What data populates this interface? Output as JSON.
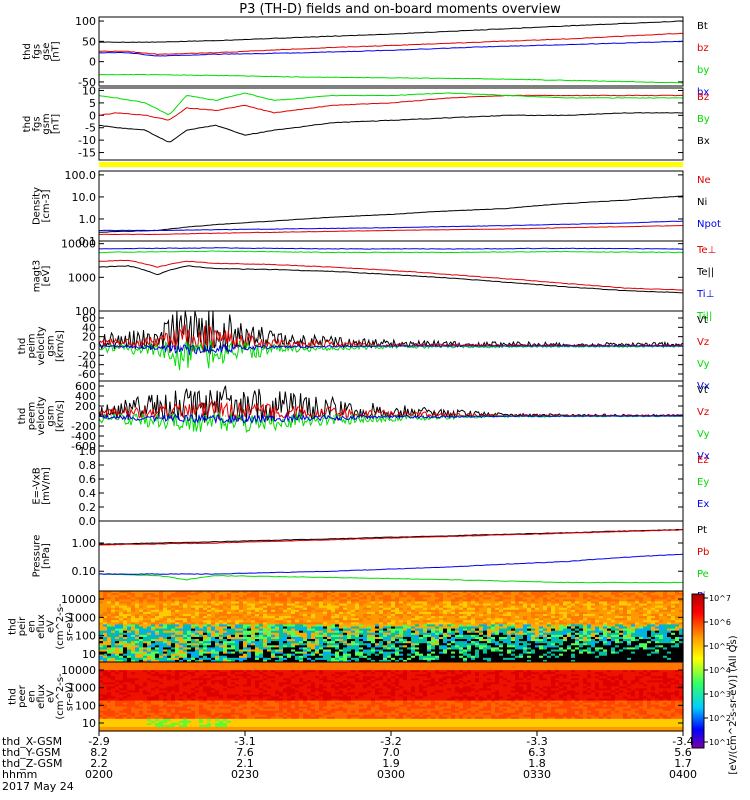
{
  "title": "P3 (TH-D) fields and on-board moments overview",
  "colors": {
    "black": "#000000",
    "red": "#e00000",
    "green": "#00dd00",
    "blue": "#0000ee",
    "yellow": "#ffff00",
    "orange": "#ff7f00"
  },
  "chart_data": [
    {
      "type": "line",
      "panel": "fgs_gse",
      "ylabel_lines": [
        "thd",
        "fgs",
        "gse",
        "[nT]"
      ],
      "ylim": [
        -60,
        110
      ],
      "yticks": [
        100,
        50,
        0,
        -50
      ],
      "series": [
        {
          "name": "Bt",
          "color": "black",
          "x": [
            0,
            0.1,
            0.2,
            0.35,
            0.5,
            0.65,
            0.8,
            1.0
          ],
          "y": [
            48,
            48,
            52,
            60,
            68,
            78,
            88,
            100
          ]
        },
        {
          "name": "bz",
          "color": "red",
          "x": [
            0,
            0.05,
            0.1,
            0.2,
            0.35,
            0.5,
            0.65,
            0.8,
            1.0
          ],
          "y": [
            26,
            25,
            18,
            22,
            32,
            40,
            48,
            56,
            70
          ]
        },
        {
          "name": "by",
          "color": "green",
          "x": [
            0,
            0.1,
            0.2,
            0.35,
            0.5,
            0.65,
            0.8,
            1.0
          ],
          "y": [
            -32,
            -32,
            -34,
            -38,
            -40,
            -42,
            -46,
            -52
          ]
        },
        {
          "name": "bx",
          "color": "blue",
          "x": [
            0,
            0.05,
            0.1,
            0.2,
            0.35,
            0.5,
            0.65,
            0.8,
            1.0
          ],
          "y": [
            22,
            22,
            14,
            18,
            22,
            28,
            36,
            42,
            50
          ]
        }
      ]
    },
    {
      "type": "line",
      "panel": "fgs_gsm",
      "ylabel_lines": [
        "thd",
        "fgs",
        "gsm",
        "[nT]"
      ],
      "ylim": [
        -18,
        11
      ],
      "yticks": [
        10,
        5,
        0,
        -5,
        -10,
        -15
      ],
      "series": [
        {
          "name": "Bz",
          "color": "red",
          "x": [
            0,
            0.03,
            0.08,
            0.12,
            0.15,
            0.2,
            0.25,
            0.3,
            0.4,
            0.5,
            0.6,
            0.7,
            0.8,
            0.9,
            1.0
          ],
          "y": [
            0,
            1,
            0,
            -2,
            3,
            2,
            4,
            1,
            4,
            5,
            7,
            8,
            8,
            8,
            8
          ]
        },
        {
          "name": "By",
          "color": "green",
          "x": [
            0,
            0.03,
            0.08,
            0.12,
            0.15,
            0.2,
            0.25,
            0.3,
            0.4,
            0.5,
            0.6,
            0.7,
            0.8,
            0.9,
            1.0
          ],
          "y": [
            8,
            7,
            5,
            0,
            8,
            6,
            9,
            6,
            8,
            8,
            9,
            8,
            7,
            7,
            7
          ]
        },
        {
          "name": "Bx",
          "color": "black",
          "x": [
            0,
            0.03,
            0.08,
            0.12,
            0.15,
            0.2,
            0.25,
            0.3,
            0.4,
            0.5,
            0.6,
            0.7,
            0.8,
            0.9,
            1.0
          ],
          "y": [
            -4,
            -5,
            -6,
            -11,
            -6,
            -4,
            -8,
            -6,
            -3,
            -2,
            -1,
            0,
            0,
            1,
            1
          ]
        }
      ]
    },
    {
      "type": "line",
      "panel": "density",
      "yscale": "log",
      "ylabel_lines": [
        "Density",
        "[cm-3]"
      ],
      "ylim": [
        0.1,
        150
      ],
      "ytick_labels": [
        "100.0",
        "10.0",
        "1.0",
        "0.1"
      ],
      "yticks": [
        100,
        10,
        1,
        0.1
      ],
      "series": [
        {
          "name": "Ne",
          "color": "red",
          "x": [
            0,
            0.1,
            0.3,
            0.5,
            0.7,
            0.9,
            1.0
          ],
          "y": [
            0.2,
            0.2,
            0.25,
            0.3,
            0.35,
            0.45,
            0.5
          ]
        },
        {
          "name": "Ni",
          "color": "black",
          "x": [
            0,
            0.1,
            0.3,
            0.5,
            0.7,
            0.9,
            1.0
          ],
          "y": [
            0.25,
            0.3,
            0.8,
            1.6,
            3,
            7,
            11
          ]
        },
        {
          "name": "Npot",
          "color": "blue",
          "x": [
            0,
            0.1,
            0.3,
            0.5,
            0.7,
            0.9,
            1.0
          ],
          "y": [
            0.3,
            0.3,
            0.35,
            0.4,
            0.5,
            0.65,
            0.8
          ]
        }
      ]
    },
    {
      "type": "line",
      "panel": "temperature",
      "yscale": "log",
      "ylabel_lines": [
        "magt3",
        "[eV]"
      ],
      "ylim": [
        100,
        12000
      ],
      "yticks": [
        10000,
        1000,
        100
      ],
      "series": [
        {
          "name": "Te⊥",
          "color": "red",
          "x": [
            0,
            0.05,
            0.1,
            0.15,
            0.2,
            0.3,
            0.4,
            0.5,
            0.6,
            0.7,
            0.8,
            0.9,
            1.0
          ],
          "y": [
            3000,
            3200,
            2000,
            3000,
            2600,
            2400,
            2000,
            1600,
            1200,
            900,
            650,
            480,
            420
          ]
        },
        {
          "name": "Te||",
          "color": "black",
          "x": [
            0,
            0.05,
            0.1,
            0.15,
            0.2,
            0.3,
            0.4,
            0.5,
            0.6,
            0.7,
            0.8,
            0.9,
            1.0
          ],
          "y": [
            2000,
            2200,
            1200,
            2200,
            1800,
            1700,
            1500,
            1200,
            950,
            700,
            520,
            400,
            350
          ]
        },
        {
          "name": "Ti⊥",
          "color": "blue",
          "x": [
            0,
            0.2,
            0.4,
            0.6,
            0.8,
            1.0
          ],
          "y": [
            7000,
            7500,
            7000,
            7000,
            7200,
            7000
          ]
        },
        {
          "name": "Ti||",
          "color": "green",
          "x": [
            0,
            0.2,
            0.4,
            0.6,
            0.8,
            1.0
          ],
          "y": [
            5500,
            6000,
            5500,
            5500,
            5800,
            5500
          ]
        }
      ]
    },
    {
      "type": "line",
      "panel": "peim_velocity",
      "ylabel_lines": [
        "thd",
        "peim",
        "velocity",
        "gsm",
        "[km/s]"
      ],
      "ylim": [
        -75,
        75
      ],
      "yticks": [
        60,
        40,
        20,
        0,
        -20,
        -40,
        -60
      ],
      "series": [
        {
          "name": "Vt",
          "color": "black",
          "noise": true,
          "x": [
            0,
            0.1,
            0.15,
            0.3,
            0.5,
            0.8,
            1.0
          ],
          "y": [
            10,
            15,
            40,
            12,
            5,
            3,
            3
          ]
        },
        {
          "name": "Vz",
          "color": "red",
          "noise": true,
          "x": [
            0,
            0.1,
            0.15,
            0.3,
            0.5,
            0.8,
            1.0
          ],
          "y": [
            5,
            8,
            20,
            6,
            2,
            1,
            1
          ]
        },
        {
          "name": "Vy",
          "color": "green",
          "noise": true,
          "x": [
            0,
            0.1,
            0.15,
            0.3,
            0.5,
            0.8,
            1.0
          ],
          "y": [
            -5,
            -8,
            -25,
            -6,
            -2,
            -1,
            -1
          ]
        },
        {
          "name": "Vx",
          "color": "blue",
          "noise": true,
          "x": [
            0,
            0.1,
            0.15,
            0.3,
            0.5,
            0.8,
            1.0
          ],
          "y": [
            0,
            -3,
            -8,
            -2,
            0,
            0,
            0
          ]
        }
      ]
    },
    {
      "type": "line",
      "panel": "peem_velocity",
      "ylabel_lines": [
        "thd",
        "peem",
        "velocity",
        "gsm",
        "[km/s]"
      ],
      "ylim": [
        -700,
        700
      ],
      "yticks": [
        600,
        400,
        200,
        0,
        -200,
        -400,
        -600
      ],
      "series": [
        {
          "name": "Vt",
          "color": "black",
          "noise": true,
          "x": [
            0,
            0.1,
            0.2,
            0.35,
            0.5,
            0.7,
            1.0
          ],
          "y": [
            100,
            180,
            250,
            180,
            90,
            20,
            10
          ]
        },
        {
          "name": "Vz",
          "color": "red",
          "noise": true,
          "x": [
            0,
            0.1,
            0.2,
            0.35,
            0.5,
            0.7,
            1.0
          ],
          "y": [
            50,
            80,
            120,
            80,
            40,
            10,
            5
          ]
        },
        {
          "name": "Vy",
          "color": "green",
          "noise": true,
          "x": [
            0,
            0.1,
            0.2,
            0.35,
            0.5,
            0.7,
            1.0
          ],
          "y": [
            -50,
            -90,
            -140,
            -90,
            -40,
            -10,
            -5
          ]
        },
        {
          "name": "Vx",
          "color": "blue",
          "noise": true,
          "x": [
            0,
            0.1,
            0.2,
            0.35,
            0.5,
            0.7,
            1.0
          ],
          "y": [
            -20,
            -40,
            -60,
            -40,
            -20,
            -5,
            0
          ]
        }
      ]
    },
    {
      "type": "line",
      "panel": "efield",
      "ylabel_lines": [
        "E=-VxB",
        "[mV/m]"
      ],
      "ylim": [
        0,
        1
      ],
      "yticks": [
        1.0,
        0.8,
        0.6,
        0.4,
        0.2,
        0.0
      ],
      "ytick_labels": [
        "1.0",
        "0.8",
        "0.6",
        "0.4",
        "0.2",
        "0.0"
      ],
      "series": [
        {
          "name": "Ez",
          "color": "red",
          "x": [],
          "y": []
        },
        {
          "name": "Ey",
          "color": "green",
          "x": [],
          "y": []
        },
        {
          "name": "Ex",
          "color": "blue",
          "x": [],
          "y": []
        }
      ]
    },
    {
      "type": "line",
      "panel": "pressure",
      "yscale": "log",
      "ylabel_lines": [
        "Pressure",
        "[nPa]"
      ],
      "ylim": [
        0.02,
        6
      ],
      "yticks": [
        1,
        0.1
      ],
      "ytick_labels": [
        "1.00",
        "0.10"
      ],
      "series": [
        {
          "name": "Pt",
          "color": "black",
          "x": [
            0,
            0.2,
            0.4,
            0.6,
            0.8,
            1.0
          ],
          "y": [
            0.9,
            1.1,
            1.4,
            1.8,
            2.3,
            3.0
          ]
        },
        {
          "name": "Pb",
          "color": "red",
          "x": [
            0,
            0.2,
            0.4,
            0.6,
            0.8,
            1.0
          ],
          "y": [
            0.85,
            1.0,
            1.3,
            1.7,
            2.2,
            2.9
          ]
        },
        {
          "name": "Pe",
          "color": "green",
          "x": [
            0,
            0.1,
            0.15,
            0.2,
            0.4,
            0.6,
            0.8,
            1.0
          ],
          "y": [
            0.08,
            0.07,
            0.05,
            0.07,
            0.06,
            0.05,
            0.04,
            0.04
          ]
        },
        {
          "name": "Pi",
          "color": "blue",
          "x": [
            0,
            0.2,
            0.4,
            0.6,
            0.8,
            1.0
          ],
          "y": [
            0.08,
            0.08,
            0.1,
            0.14,
            0.22,
            0.4
          ]
        }
      ]
    },
    {
      "type": "heatmap",
      "panel": "peir_eflux",
      "ylabel_lines": [
        "thd",
        "peir",
        "en",
        "eflux",
        "eV",
        "(cm^2-s-",
        "sr-eV)"
      ],
      "yticks": [
        10000,
        1000,
        100,
        10
      ],
      "ytick_labels": [
        "10000",
        "1000",
        "100",
        "10"
      ]
    },
    {
      "type": "heatmap",
      "panel": "peer_eflux",
      "ylabel_lines": [
        "thd",
        "peer",
        "en",
        "eflux",
        "eV",
        "(cm^2-s-",
        "sr-eV)"
      ],
      "yticks": [
        10000,
        1000,
        100,
        10
      ],
      "ytick_labels": [
        "10000",
        "1000",
        "100",
        "10"
      ]
    }
  ],
  "colorbar": {
    "ytick_labels": [
      "10^7",
      "10^6",
      "10^5",
      "10^4",
      "10^3",
      "10^2",
      "10^1"
    ],
    "title": "[eV/(cm^2-s-sr-eV)] (All Qs)"
  },
  "xaxis": {
    "rows": [
      {
        "label": "thd_X-GSM",
        "values": [
          "-2.9",
          "-3.1",
          "-3.2",
          "-3.3",
          "-3.4"
        ]
      },
      {
        "label": "thd_Y-GSM",
        "values": [
          "8.2",
          "7.6",
          "7.0",
          "6.3",
          "5.6"
        ]
      },
      {
        "label": "thd_Z-GSM",
        "values": [
          "2.2",
          "2.1",
          "1.9",
          "1.8",
          "1.7"
        ]
      },
      {
        "label": "hhmm",
        "values": [
          "0200",
          "0230",
          "0300",
          "0330",
          "0400"
        ]
      }
    ],
    "date": "2017 May 24"
  }
}
